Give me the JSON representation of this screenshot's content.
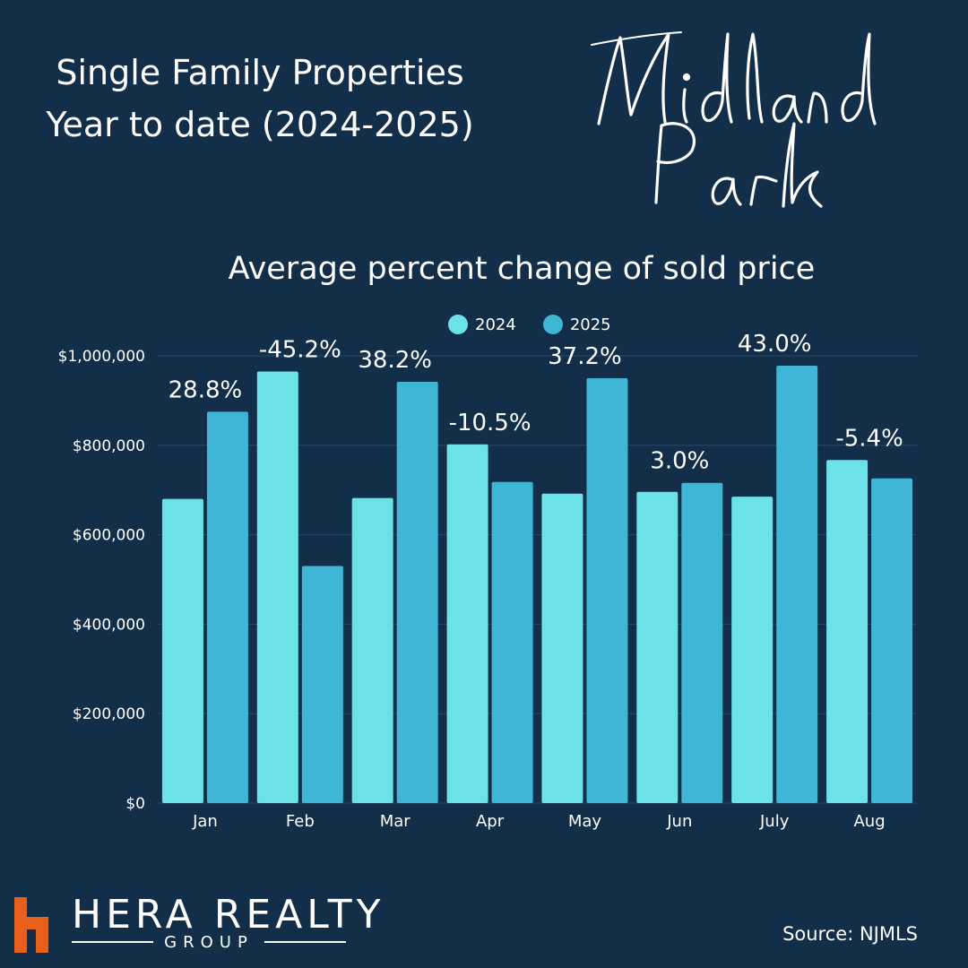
{
  "header": {
    "title_line1": "Single Family Properties",
    "title_line2": "Year to date  (2024-2025)"
  },
  "town_logo": {
    "line1": "Midland",
    "line2": "Park"
  },
  "chart_data": {
    "type": "bar",
    "title": "Average percent change of sold price",
    "categories": [
      "Jan",
      "Feb",
      "Mar",
      "Apr",
      "May",
      "Jun",
      "July",
      "Aug"
    ],
    "series": [
      {
        "name": "2024",
        "color": "#6ae2e8",
        "values": [
          680000,
          965000,
          682000,
          802000,
          692000,
          696000,
          685000,
          767000
        ]
      },
      {
        "name": "2025",
        "color": "#3fb6d6",
        "values": [
          875000,
          530000,
          942000,
          718000,
          950000,
          716000,
          978000,
          726000
        ]
      }
    ],
    "annotations": [
      "28.8%",
      "-45.2%",
      "38.2%",
      "-10.5%",
      "37.2%",
      "3.0%",
      "43.0%",
      "-5.4%"
    ],
    "y_ticks": [
      "$0",
      "$200,000",
      "$400,000",
      "$600,000",
      "$800,000",
      "$1,000,000"
    ],
    "ylim": [
      0,
      1000000
    ],
    "grid": true,
    "legend_position": "top-center"
  },
  "brand": {
    "name": "HERA REALTY",
    "sub": "GROUP",
    "mark_color": "#e8601c"
  },
  "source": "Source: NJMLS"
}
